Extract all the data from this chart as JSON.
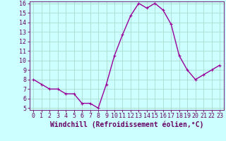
{
  "x": [
    0,
    1,
    2,
    3,
    4,
    5,
    6,
    7,
    8,
    9,
    10,
    11,
    12,
    13,
    14,
    15,
    16,
    17,
    18,
    19,
    20,
    21,
    22,
    23
  ],
  "y": [
    8.0,
    7.5,
    7.0,
    7.0,
    6.5,
    6.5,
    5.5,
    5.5,
    5.0,
    7.5,
    10.5,
    12.7,
    14.7,
    16.0,
    15.5,
    16.0,
    15.3,
    13.8,
    10.5,
    9.0,
    8.0,
    8.5,
    9.0,
    9.5
  ],
  "line_color": "#990099",
  "marker": "+",
  "marker_size": 3,
  "line_width": 1.0,
  "bg_color": "#ccffff",
  "grid_color": "#aaddcc",
  "xlabel": "Windchill (Refroidissement éolien,°C)",
  "xlabel_fontsize": 7,
  "tick_fontsize": 6,
  "ylim": [
    5,
    16
  ],
  "yticks": [
    5,
    6,
    7,
    8,
    9,
    10,
    11,
    12,
    13,
    14,
    15,
    16
  ],
  "xticks": [
    0,
    1,
    2,
    3,
    4,
    5,
    6,
    7,
    8,
    9,
    10,
    11,
    12,
    13,
    14,
    15,
    16,
    17,
    18,
    19,
    20,
    21,
    22,
    23
  ],
  "xlim": [
    -0.5,
    23.5
  ],
  "text_color": "#660066"
}
